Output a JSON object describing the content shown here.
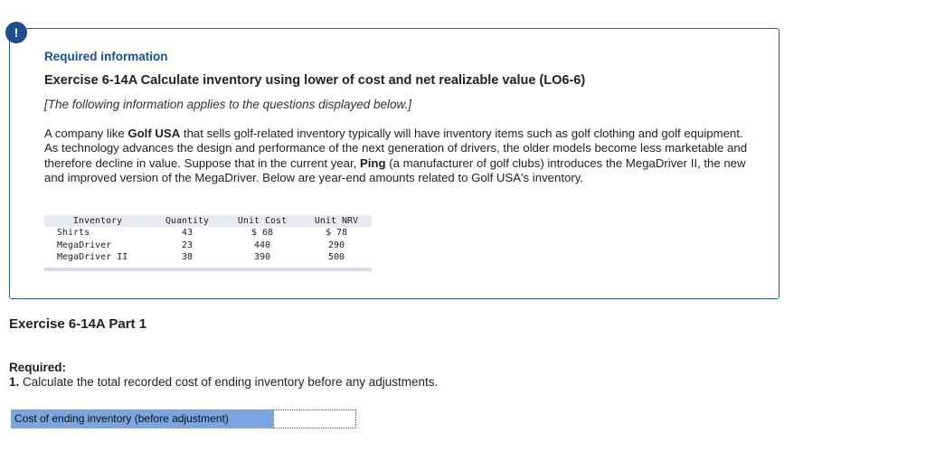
{
  "alert_icon": "exclamation-icon",
  "colors": {
    "accent": "#1f4e8c",
    "border": "#2a5d9f",
    "answer_label_bg": "#7aa5de",
    "table_header_bg": "#e8ecf2"
  },
  "info": {
    "heading": "Required information",
    "exercise_title": "Exercise 6-14A Calculate inventory using lower of cost and net realizable value (LO6-6)",
    "applies_note": "[The following information applies to the questions displayed below.]",
    "paragraph": {
      "t1": "A company like ",
      "b1": "Golf USA",
      "t2": " that sells golf-related inventory typically will have inventory items such as golf clothing and golf equipment. As technology advances the design and performance of the next generation of drivers, the older models become less marketable and therefore decline in value. Suppose that in the current year, ",
      "b2": "Ping",
      "t3": " (a manufacturer of golf clubs) introduces the MegaDriver II, the new and improved version of the MegaDriver. Below are year-end amounts related to Golf USA's inventory."
    },
    "table": {
      "headers": [
        "Inventory",
        "Quantity",
        "Unit Cost",
        "Unit NRV"
      ],
      "rows": [
        [
          "Shirts",
          "43",
          "$ 68",
          "$ 78"
        ],
        [
          "MegaDriver",
          "23",
          "440",
          "290"
        ],
        [
          "MegaDriver II",
          "38",
          "390",
          "500"
        ]
      ]
    }
  },
  "part": {
    "title": "Exercise 6-14A Part 1",
    "required_label": "Required:",
    "question_number": "1.",
    "question_text": " Calculate the total recorded cost of ending inventory before any adjustments.",
    "answer_label": "Cost of ending inventory (before adjustment)",
    "answer_value": ""
  }
}
